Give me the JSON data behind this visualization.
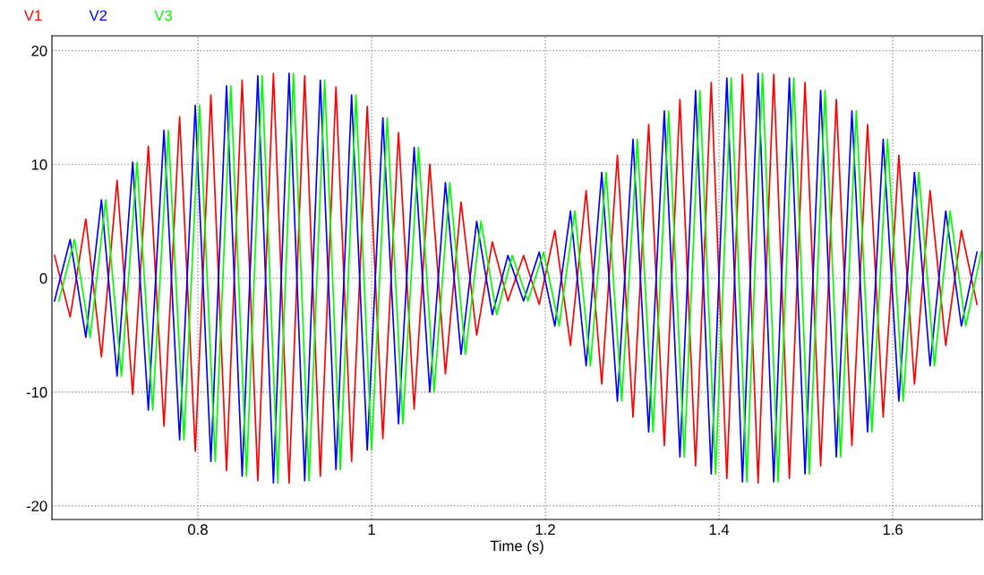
{
  "chart_data": {
    "type": "line",
    "xlabel": "Time (s)",
    "x": [
      0.635,
      0.653,
      0.671,
      0.689,
      0.707,
      0.725,
      0.743,
      0.761,
      0.779,
      0.797,
      0.815,
      0.833,
      0.851,
      0.869,
      0.887,
      0.905,
      0.923,
      0.941,
      0.959,
      0.977,
      0.995,
      1.013,
      1.031,
      1.049,
      1.067,
      1.085,
      1.103,
      1.121,
      1.139,
      1.157,
      1.175,
      1.193,
      1.211,
      1.229,
      1.247,
      1.265,
      1.283,
      1.301,
      1.319,
      1.337,
      1.355,
      1.373,
      1.391,
      1.409,
      1.427,
      1.445,
      1.463,
      1.481,
      1.499,
      1.517,
      1.535,
      1.553,
      1.571,
      1.589,
      1.607,
      1.625,
      1.643,
      1.661,
      1.679,
      1.697
    ],
    "series": [
      {
        "name": "V1",
        "color": "#ff0000",
        "values": [
          2,
          -3.4,
          5.2,
          -6.9,
          8.6,
          -10.2,
          11.6,
          -13.0,
          14.2,
          -15.2,
          16.1,
          -16.9,
          17.4,
          -17.8,
          18.0,
          -18.0,
          17.8,
          -17.4,
          16.8,
          -16.1,
          15.1,
          -14.1,
          12.8,
          -11.5,
          10.0,
          -8.4,
          6.7,
          -5.0,
          3.2,
          -2,
          2,
          -2.3,
          4.2,
          -5.9,
          7.7,
          -9.3,
          10.8,
          -12.2,
          13.5,
          -14.7,
          15.7,
          -16.5,
          17.2,
          -17.6,
          17.9,
          -18,
          17.9,
          -17.6,
          17.2,
          -16.5,
          15.7,
          -14.7,
          13.5,
          -12.2,
          10.8,
          -9.3,
          7.7,
          -5.9,
          4.2,
          -2.3
        ]
      },
      {
        "name": "V2",
        "color": "#0000ff",
        "values": [
          -2,
          3.4,
          -5.2,
          6.9,
          -8.6,
          10.2,
          -11.6,
          13.0,
          -14.2,
          15.2,
          -16.1,
          16.9,
          -17.4,
          17.8,
          -18.0,
          18.0,
          -17.8,
          17.4,
          -16.8,
          16.1,
          -15.1,
          14.1,
          -12.8,
          11.5,
          -10.0,
          8.4,
          -6.7,
          5.0,
          -3.2,
          2,
          -2,
          2.3,
          -4.2,
          5.9,
          -7.7,
          9.3,
          -10.8,
          12.2,
          -13.5,
          14.7,
          -15.7,
          16.5,
          -17.2,
          17.6,
          -17.9,
          18,
          -17.9,
          17.6,
          -17.2,
          16.5,
          -15.7,
          14.7,
          -13.5,
          12.2,
          -10.8,
          9.3,
          -7.7,
          5.9,
          -4.2,
          2.3
        ]
      },
      {
        "name": "V3",
        "color": "#00ff00",
        "x": [
          0.64,
          0.658,
          0.676,
          0.694,
          0.712,
          0.73,
          0.748,
          0.766,
          0.784,
          0.802,
          0.82,
          0.838,
          0.856,
          0.874,
          0.892,
          0.91,
          0.928,
          0.946,
          0.964,
          0.982,
          1.0,
          1.018,
          1.036,
          1.054,
          1.072,
          1.09,
          1.108,
          1.126,
          1.144,
          1.162,
          1.18,
          1.198,
          1.216,
          1.234,
          1.252,
          1.27,
          1.288,
          1.306,
          1.324,
          1.342,
          1.36,
          1.378,
          1.396,
          1.414,
          1.432,
          1.45,
          1.468,
          1.486,
          1.504,
          1.522,
          1.54,
          1.558,
          1.576,
          1.594,
          1.612,
          1.63,
          1.648,
          1.666,
          1.684,
          1.702
        ],
        "values": [
          -2,
          3.4,
          -5.2,
          6.9,
          -8.6,
          10.2,
          -11.6,
          13.0,
          -14.2,
          15.2,
          -16.1,
          16.9,
          -17.4,
          17.8,
          -18.0,
          18.0,
          -17.8,
          17.4,
          -16.8,
          16.1,
          -15.1,
          14.1,
          -12.8,
          11.5,
          -10.0,
          8.4,
          -6.7,
          5.0,
          -3.2,
          2,
          -2,
          2.3,
          -4.2,
          5.9,
          -7.7,
          9.3,
          -10.8,
          12.2,
          -13.5,
          14.7,
          -15.7,
          16.5,
          -17.2,
          17.6,
          -17.9,
          18,
          -17.9,
          17.6,
          -17.2,
          16.5,
          -15.7,
          14.7,
          -13.5,
          12.2,
          -10.8,
          9.3,
          -7.7,
          5.9,
          -4.2,
          2.3
        ]
      }
    ],
    "xlim": [
      0.632,
      1.703
    ],
    "ylim": [
      -21.2,
      21.3
    ],
    "xticks": [
      0.8,
      1,
      1.2,
      1.4,
      1.6
    ],
    "yticks": [
      -20,
      -10,
      0,
      10,
      20
    ],
    "grid": true,
    "legend": "top left",
    "marker": "none",
    "line_style": "solid"
  }
}
